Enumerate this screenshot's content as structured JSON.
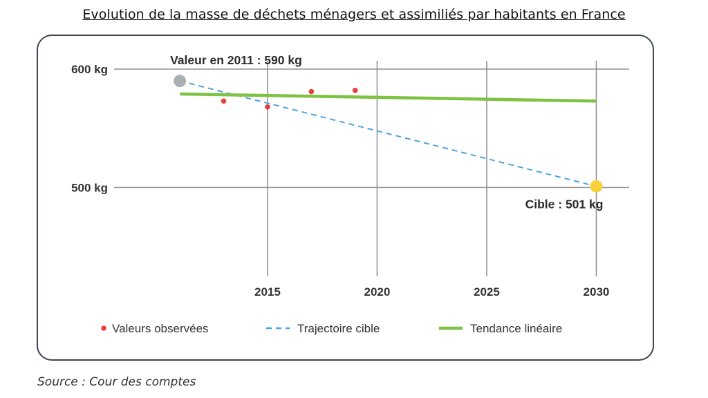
{
  "header": {
    "title": "Evolution de la masse de déchets ménagers et assimiliés par habitants en France"
  },
  "footer": {
    "source": "Source : Cour des comptes"
  },
  "chart_data": {
    "type": "line",
    "title": "Evolution de la masse de déchets ménagers et assimiliés par habitants en France",
    "xlabel": "",
    "ylabel": "",
    "xlim": [
      2008,
      2031.5
    ],
    "ylim": [
      425,
      607
    ],
    "grid": true,
    "x_ticks": [
      {
        "value": 2015,
        "label": "2015"
      },
      {
        "value": 2020,
        "label": "2020"
      },
      {
        "value": 2025,
        "label": "2025"
      },
      {
        "value": 2030,
        "label": "2030"
      }
    ],
    "y_ticks": [
      {
        "value": 600,
        "label": "600 kg"
      },
      {
        "value": 500,
        "label": "500 kg"
      }
    ],
    "series": [
      {
        "name": "Valeurs observées",
        "style": "scatter",
        "color": "#e8403a",
        "points": [
          {
            "x": 2013,
            "y": 573
          },
          {
            "x": 2015,
            "y": 568
          },
          {
            "x": 2017,
            "y": 581
          },
          {
            "x": 2019,
            "y": 582
          }
        ]
      },
      {
        "name": "Trajectoire cible",
        "style": "dashed-line",
        "color": "#4aa3df",
        "points": [
          {
            "x": 2011,
            "y": 590
          },
          {
            "x": 2030,
            "y": 501
          }
        ]
      },
      {
        "name": "Tendance linéaire",
        "style": "line",
        "color": "#7dc242",
        "points": [
          {
            "x": 2011,
            "y": 579
          },
          {
            "x": 2030,
            "y": 573
          }
        ]
      }
    ],
    "markers": [
      {
        "x": 2011,
        "y": 590,
        "color": "#a9b1b3"
      },
      {
        "x": 2030,
        "y": 501,
        "color": "#f7d23c"
      }
    ],
    "annotations": [
      {
        "text": "Valeur en 2011 : 590 kg",
        "x": 2011,
        "y": 590
      },
      {
        "text": "Cible : 501 kg",
        "x": 2030,
        "y": 501
      }
    ],
    "legend": {
      "placement": "bottom",
      "items": [
        {
          "label": "Valeurs observées",
          "kind": "dot",
          "color": "#e8403a"
        },
        {
          "label": "Trajectoire cible",
          "kind": "dashed",
          "color": "#4aa3df"
        },
        {
          "label": "Tendance linéaire",
          "kind": "solid",
          "color": "#7dc242"
        }
      ]
    }
  }
}
